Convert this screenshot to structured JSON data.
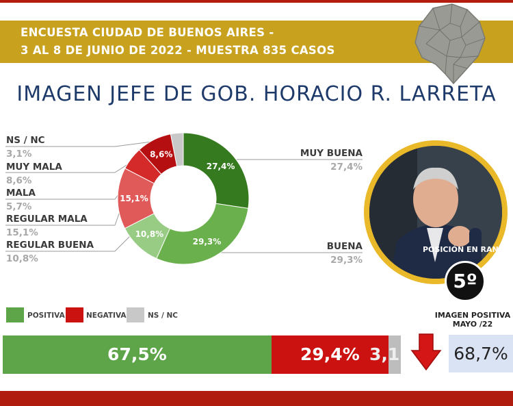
{
  "header": {
    "line1": "ENCUESTA CIUDAD DE BUENOS AIRES -",
    "line2": "3 AL 8 DE JUNIO DE 2022  - MUESTRA 835 CASOS"
  },
  "title": "IMAGEN JEFE DE GOB.  HORACIO R. LARRETA",
  "colors": {
    "muy_buena": "#357a1e",
    "buena": "#6ab04c",
    "regular_buena": "#98cc85",
    "regular_mala": "#e05a5a",
    "mala": "#d42a2a",
    "muy_mala": "#b50f12",
    "ns_nc": "#c8c8c8",
    "positiva": "#5da548",
    "negativa": "#cc1111"
  },
  "chart_data": [
    {
      "type": "pie",
      "style": "donut",
      "categories": [
        "MUY BUENA",
        "BUENA",
        "REGULAR BUENA",
        "REGULAR MALA",
        "MALA",
        "MUY MALA",
        "NS / NC"
      ],
      "values": [
        27.4,
        29.3,
        10.8,
        15.1,
        5.7,
        8.6,
        3.1
      ],
      "labels": [
        "27,4%",
        "29,3%",
        "10,8%",
        "15,1%",
        "",
        "8,6%",
        ""
      ],
      "category_values": [
        "27,4%",
        "29,3%",
        "10,8%",
        "15,1%",
        "5,7%",
        "8,6%",
        "3,1%"
      ]
    },
    {
      "type": "bar",
      "orientation": "horizontal",
      "stacked": true,
      "categories": [
        "POSITIVA",
        "NEGATIVA",
        "NS / NC"
      ],
      "values": [
        67.5,
        29.4,
        3.1
      ],
      "labels": [
        "67,5%",
        "29,4%",
        "3,1"
      ],
      "legend": [
        "POSITIVA",
        "NEGATIVA",
        "NS / NC"
      ],
      "legend_position": "top-left"
    }
  ],
  "ranking": {
    "label": "POSICIÓN EN RANKING",
    "value": "5º"
  },
  "previous": {
    "title": "IMAGEN POSITIVA MAYO /22",
    "value": "68,7%"
  },
  "icons": {
    "map": "buenos-aires-map-icon",
    "arrow": "down-arrow-icon",
    "photo": "person-photo"
  }
}
